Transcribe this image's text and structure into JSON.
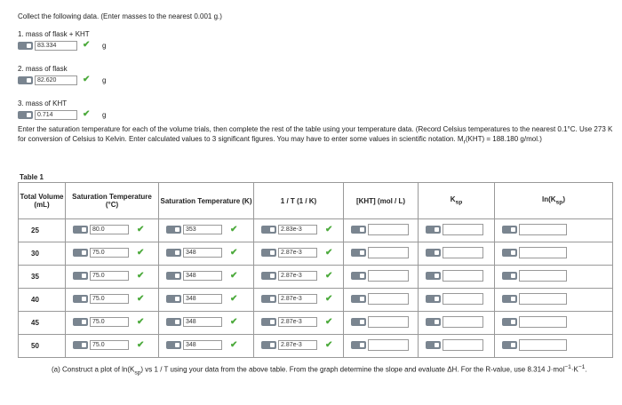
{
  "header": "Collect the following data. (Enter masses to the nearest 0.001 g.)",
  "items": [
    {
      "label": "1. mass of flask + KHT",
      "value": "83.334",
      "unit": "g"
    },
    {
      "label": "2. mass of flask",
      "value": "82.620",
      "unit": "g"
    },
    {
      "label": "3. mass of KHT",
      "value": "0.714",
      "unit": "g"
    }
  ],
  "instructions": {
    "text": "Enter the saturation temperature for each of the volume trials, then complete the rest of the table using your temperature data. (Record Celsius temperatures to the nearest 0.1°C. Use 273 K for conversion of Celsius to Kelvin. Enter calculated values to 3 significant figures. You may have to enter some values in scientific notation. M",
    "sub": "r",
    "tail": "(KHT) = 188.180 g/mol.)"
  },
  "table": {
    "title": "Table 1",
    "headers": [
      {
        "main": "Total Volume (mL)"
      },
      {
        "main": "Saturation Temperature (°C)"
      },
      {
        "main": "Saturation Temperature (K)"
      },
      {
        "main": "1 / T (1 / K)"
      },
      {
        "main": "[KHT] (mol / L)"
      },
      {
        "main": "K",
        "sub": "sp"
      },
      {
        "main": "ln(K",
        "sub": "sp",
        "tail": ")"
      }
    ],
    "rows": [
      [
        "25",
        "80.0",
        "353",
        "2.83e-3"
      ],
      [
        "30",
        "75.0",
        "348",
        "2.87e-3"
      ],
      [
        "35",
        "75.0",
        "348",
        "2.87e-3"
      ],
      [
        "40",
        "75.0",
        "348",
        "2.87e-3"
      ],
      [
        "45",
        "75.0",
        "348",
        "2.87e-3"
      ],
      [
        "50",
        "75.0",
        "348",
        "2.87e-3"
      ]
    ]
  },
  "footer": {
    "text": "(a) Construct a plot of ln(K",
    "sub": "sp",
    "text2": ") vs 1 / T using your data from the above table. From the graph determine the slope and evaluate ΔH. For the R-value, use 8.314 J·mol",
    "sup1": "−1",
    "text3": "·K",
    "sup2": "−1",
    "text4": "."
  }
}
